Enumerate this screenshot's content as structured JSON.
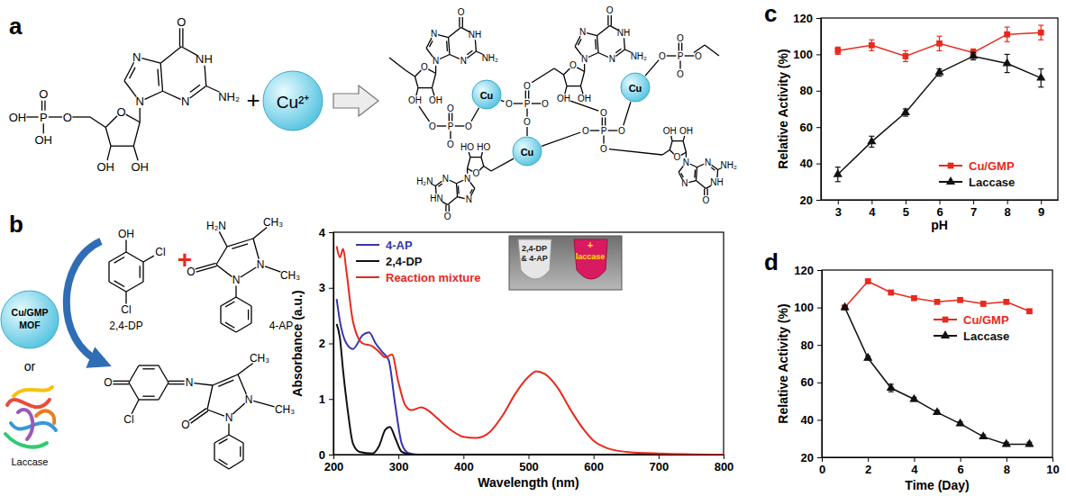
{
  "panel_labels": [
    "a",
    "b",
    "c",
    "d"
  ],
  "panel_a": {
    "gmp_phosphate": [
      "OH",
      "P",
      "O",
      "OH",
      "O"
    ],
    "gmp_nucleoside": [
      "O",
      "OH",
      "OH",
      "N",
      "N",
      "N",
      "NH",
      "O",
      "NH₂"
    ],
    "plus": "+",
    "cu_ion": "Cu²⁺",
    "polymer_units": [
      [
        "O",
        "OH",
        "OH",
        "N",
        "N",
        "N",
        "NH",
        "O",
        "NH₂"
      ],
      [
        "O",
        "OH",
        "OH",
        "N",
        "N",
        "N",
        "NH",
        "O",
        "NH₂"
      ],
      [
        "O",
        "OH",
        "OH",
        "N",
        "N",
        "N",
        "NH",
        "O",
        "NH₂"
      ],
      [
        "O",
        "HO",
        "HO",
        "N",
        "N",
        "N",
        "HN",
        "O",
        "H₂N"
      ]
    ],
    "polymer_phosphates": [
      [
        "O",
        "P",
        "O",
        "O",
        "O"
      ],
      [
        "O",
        "P",
        "O",
        "O",
        "O"
      ],
      [
        "O",
        "P",
        "O",
        "O",
        "O"
      ],
      [
        "O",
        "P",
        "O",
        "O",
        "O"
      ]
    ],
    "polymer_cu": [
      "Cu",
      "Cu",
      "Cu"
    ]
  },
  "panel_b_scheme": {
    "catalyst": [
      "Cu/GMP",
      "MOF"
    ],
    "or": "or",
    "enzyme": "Laccase",
    "plus": "+",
    "dp_atoms": [
      "OH",
      "Cl",
      "Cl"
    ],
    "dp_name": "2,4-DP",
    "ap_atoms": [
      "H₂N",
      "CH₃",
      "O",
      "N",
      "N",
      "CH₃"
    ],
    "ap_name": "4-AP",
    "product_atoms": [
      "O",
      "Cl",
      "N",
      "CH₃",
      "O",
      "N",
      "N",
      "CH₃"
    ]
  },
  "chart_data": [
    {
      "type": "line",
      "x_label": "Wavelength (nm)",
      "y_label": "Absorbance (a.u.)",
      "xlim": [
        200,
        800
      ],
      "xticks": [
        200,
        300,
        400,
        500,
        600,
        700,
        800
      ],
      "ylim": [
        0,
        4
      ],
      "yticks": [
        0,
        1,
        2,
        3,
        4
      ],
      "legend": "top-left",
      "annotations": [
        "2,4-DP",
        "& 4-AP",
        "+",
        "laccase"
      ],
      "series": [
        {
          "name": "4-AP",
          "color": "#3535b0",
          "x": [
            205,
            210,
            220,
            230,
            245,
            255,
            265,
            275,
            285,
            295,
            305,
            315,
            330,
            400,
            500,
            600,
            700,
            800
          ],
          "values": [
            2.8,
            2.4,
            2.0,
            1.9,
            2.15,
            2.2,
            2.0,
            1.85,
            1.7,
            0.9,
            0.2,
            0.03,
            0,
            0,
            0,
            0,
            0,
            0
          ]
        },
        {
          "name": "2,4-DP",
          "color": "#111111",
          "x": [
            205,
            210,
            215,
            222,
            230,
            240,
            260,
            270,
            280,
            287,
            295,
            305,
            320,
            400,
            500,
            600,
            700,
            800
          ],
          "values": [
            2.35,
            2.1,
            1.5,
            0.8,
            0.2,
            0.05,
            0.02,
            0.15,
            0.45,
            0.5,
            0.3,
            0.05,
            0,
            0,
            0,
            0,
            0,
            0
          ]
        },
        {
          "name": "Reaction mixture",
          "color": "#e8291c",
          "x": [
            205,
            210,
            215,
            220,
            230,
            245,
            260,
            270,
            280,
            290,
            300,
            310,
            320,
            335,
            345,
            360,
            380,
            400,
            420,
            440,
            460,
            480,
            500,
            512,
            525,
            545,
            565,
            585,
            600,
            620,
            650,
            700,
            800
          ],
          "values": [
            3.75,
            3.55,
            3.7,
            3.3,
            2.4,
            2.0,
            1.95,
            1.85,
            1.75,
            1.8,
            1.3,
            0.9,
            0.8,
            0.85,
            0.8,
            0.65,
            0.45,
            0.32,
            0.3,
            0.4,
            0.7,
            1.1,
            1.4,
            1.5,
            1.45,
            1.2,
            0.8,
            0.45,
            0.25,
            0.12,
            0.05,
            0.02,
            0
          ]
        }
      ]
    },
    {
      "type": "line",
      "x_label": "pH",
      "y_label": "Relative Activity (%)",
      "xlim": [
        2.5,
        9.5
      ],
      "xticks": [
        3,
        4,
        5,
        6,
        7,
        8,
        9
      ],
      "ylim": [
        20,
        120
      ],
      "yticks": [
        20,
        40,
        60,
        80,
        100,
        120
      ],
      "legend": "bottom-right",
      "x": [
        3,
        4,
        5,
        6,
        7,
        8,
        9
      ],
      "series": [
        {
          "name": "Cu/GMP",
          "color": "#e8291c",
          "marker": "square",
          "values": [
            102,
            105,
            99,
            106,
            101,
            111,
            112
          ],
          "errors": [
            2,
            3,
            3,
            4,
            2,
            4,
            4
          ]
        },
        {
          "name": "Laccase",
          "color": "#111111",
          "marker": "triangle",
          "values": [
            34,
            52,
            68,
            90,
            99,
            95,
            87
          ],
          "errors": [
            4,
            3,
            2,
            2,
            2,
            5,
            5
          ]
        }
      ]
    },
    {
      "type": "line",
      "x_label": "Time (Day)",
      "y_label": "Relative Activity (%)",
      "xlim": [
        0,
        10
      ],
      "xticks": [
        0,
        2,
        4,
        6,
        8,
        10
      ],
      "ylim": [
        20,
        120
      ],
      "yticks": [
        20,
        40,
        60,
        80,
        100,
        120
      ],
      "legend": "top-right",
      "x": [
        1,
        2,
        3,
        4,
        5,
        6,
        7,
        8,
        9
      ],
      "series": [
        {
          "name": "Cu/GMP",
          "color": "#e8291c",
          "marker": "square",
          "values": [
            100,
            114,
            108,
            105,
            103,
            104,
            102,
            103,
            98
          ],
          "errors": [
            1,
            1,
            1,
            1,
            1,
            1,
            1,
            1,
            1
          ]
        },
        {
          "name": "Laccase",
          "color": "#111111",
          "marker": "triangle",
          "values": [
            100,
            73,
            57,
            51,
            44,
            38,
            31,
            27,
            27
          ],
          "errors": [
            1,
            1,
            2,
            1,
            1,
            1,
            1,
            1,
            1
          ]
        }
      ]
    }
  ]
}
